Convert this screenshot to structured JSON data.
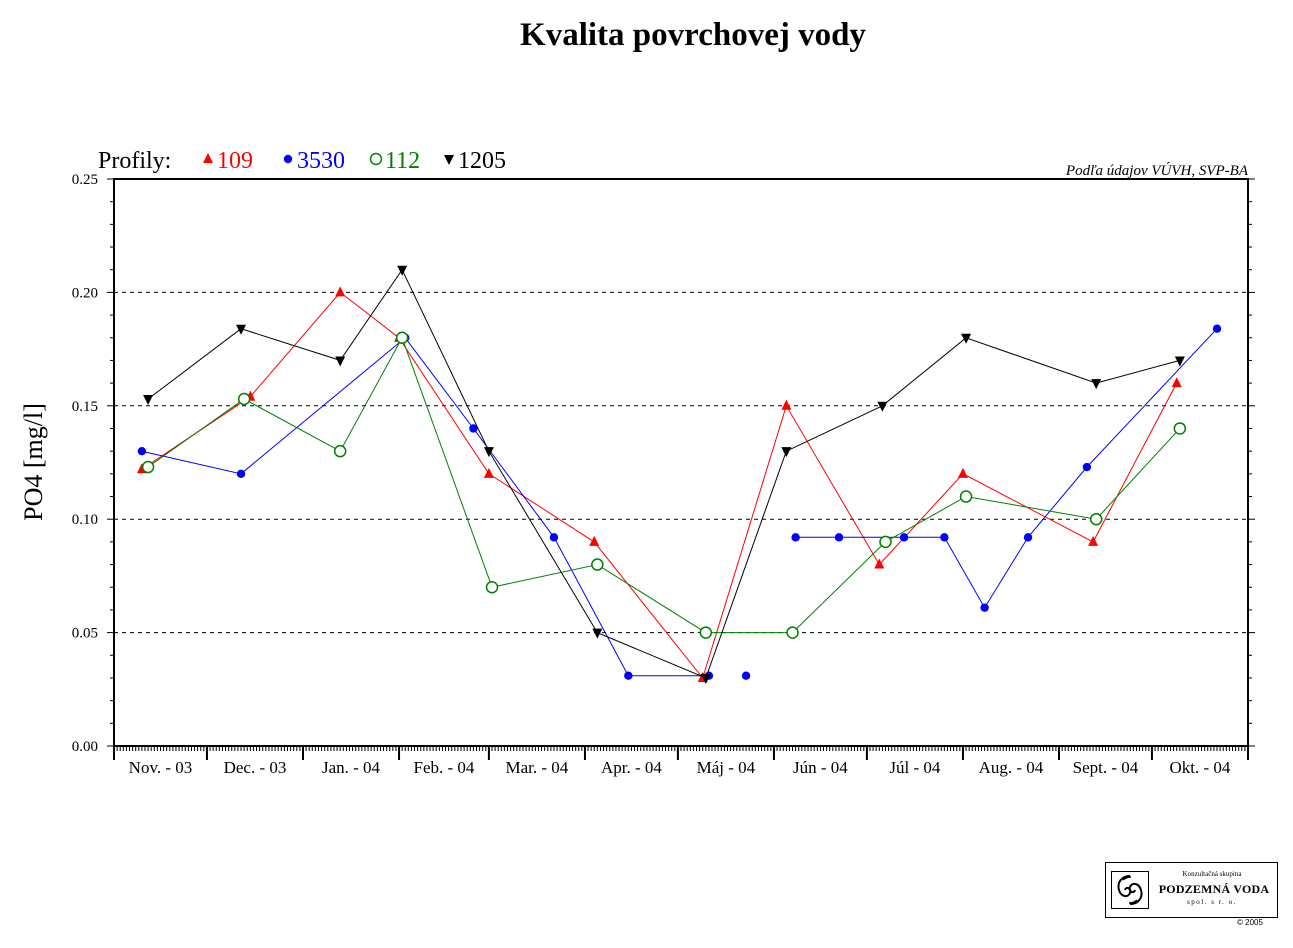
{
  "chart_data": {
    "type": "line",
    "title": "Kvalita povrchovej vody",
    "ylabel": "PO4 [mg/l]",
    "xlabel": "",
    "ylim": [
      0,
      0.25
    ],
    "yticks": [
      0.0,
      0.05,
      0.1,
      0.15,
      0.2,
      0.25
    ],
    "ytick_labels": [
      "0.00",
      "0.05",
      "0.10",
      "0.15",
      "0.20",
      "0.25"
    ],
    "y_minor_step": 0.01,
    "grid": "dashed horizontal at major ticks",
    "categories": [
      "Nov. - 03",
      "Dec. - 03",
      "Jan. - 04",
      "Feb. - 04",
      "Mar. - 04",
      "Apr. - 04",
      "Máj - 04",
      "Jún - 04",
      "Júl - 04",
      "Aug. - 04",
      "Sept. - 04",
      "Okt. - 04"
    ],
    "x_start": "2003-11-01",
    "month_days": [
      30,
      31,
      31,
      29,
      31,
      30,
      31,
      30,
      31,
      31,
      30,
      31
    ],
    "legend_prefix": "Profily:",
    "legend_position": "top-left above plot",
    "source_note": "Podľa údajov VÚVH, SVP-BA",
    "series": [
      {
        "name": "109",
        "color": "#ff0000",
        "marker": "triangle-up",
        "points": [
          {
            "x": "2003-11-10",
            "y": 0.122
          },
          {
            "x": "2003-12-15",
            "y": 0.154
          },
          {
            "x": "2004-01-13",
            "y": 0.2
          },
          {
            "x": "2004-02-01",
            "y": 0.18
          },
          {
            "x": "2004-03-01",
            "y": 0.12
          },
          {
            "x": "2004-04-04",
            "y": 0.09
          },
          {
            "x": "2004-05-09",
            "y": 0.03
          },
          {
            "x": "2004-06-05",
            "y": 0.15
          },
          {
            "x": "2004-07-05",
            "y": 0.08
          },
          {
            "x": "2004-08-01",
            "y": 0.12
          },
          {
            "x": "2004-09-12",
            "y": 0.09
          },
          {
            "x": "2004-10-09",
            "y": 0.16
          }
        ]
      },
      {
        "name": "3530",
        "color": "#0000ff",
        "marker": "circle-filled",
        "points": [
          {
            "x": "2003-11-10",
            "y": 0.13
          },
          {
            "x": "2003-12-12",
            "y": 0.12
          },
          {
            "x": "2004-02-03",
            "y": 0.18
          },
          {
            "x": "2004-02-25",
            "y": 0.14
          },
          {
            "x": "2004-03-22",
            "y": 0.092
          },
          {
            "x": "2004-04-15",
            "y": 0.031
          },
          {
            "x": "2004-05-11",
            "y": 0.031
          },
          {
            "x": "2004-05-23",
            "y": 0.031,
            "gap_before": true
          },
          {
            "x": "2004-06-08",
            "y": 0.092,
            "gap_before": true
          },
          {
            "x": "2004-06-22",
            "y": 0.092
          },
          {
            "x": "2004-07-13",
            "y": 0.092
          },
          {
            "x": "2004-07-26",
            "y": 0.092
          },
          {
            "x": "2004-08-08",
            "y": 0.061
          },
          {
            "x": "2004-08-22",
            "y": 0.092
          },
          {
            "x": "2004-09-10",
            "y": 0.123
          },
          {
            "x": "2004-10-22",
            "y": 0.184
          }
        ]
      },
      {
        "name": "112",
        "color": "#008000",
        "marker": "circle-open",
        "points": [
          {
            "x": "2003-11-12",
            "y": 0.123
          },
          {
            "x": "2003-12-13",
            "y": 0.153
          },
          {
            "x": "2004-01-13",
            "y": 0.13
          },
          {
            "x": "2004-02-02",
            "y": 0.18
          },
          {
            "x": "2004-03-02",
            "y": 0.07
          },
          {
            "x": "2004-04-05",
            "y": 0.08
          },
          {
            "x": "2004-05-10",
            "y": 0.05
          },
          {
            "x": "2004-06-07",
            "y": 0.05
          },
          {
            "x": "2004-07-07",
            "y": 0.09
          },
          {
            "x": "2004-08-02",
            "y": 0.11
          },
          {
            "x": "2004-09-13",
            "y": 0.1
          },
          {
            "x": "2004-10-10",
            "y": 0.14
          }
        ]
      },
      {
        "name": "1205",
        "color": "#000000",
        "marker": "triangle-down",
        "points": [
          {
            "x": "2003-11-12",
            "y": 0.153
          },
          {
            "x": "2003-12-12",
            "y": 0.184
          },
          {
            "x": "2004-01-13",
            "y": 0.17
          },
          {
            "x": "2004-02-02",
            "y": 0.21
          },
          {
            "x": "2004-03-01",
            "y": 0.13
          },
          {
            "x": "2004-04-05",
            "y": 0.05
          },
          {
            "x": "2004-05-10",
            "y": 0.03
          },
          {
            "x": "2004-06-05",
            "y": 0.13
          },
          {
            "x": "2004-07-06",
            "y": 0.15
          },
          {
            "x": "2004-08-02",
            "y": 0.18
          },
          {
            "x": "2004-09-13",
            "y": 0.16
          },
          {
            "x": "2004-10-10",
            "y": 0.17
          }
        ]
      }
    ]
  },
  "logo": {
    "top_text": "Konzultačná skupina",
    "name": "PODZEMNÁ VODA",
    "sub_text": "spol. s r. o.",
    "copyright": "© 2005"
  }
}
